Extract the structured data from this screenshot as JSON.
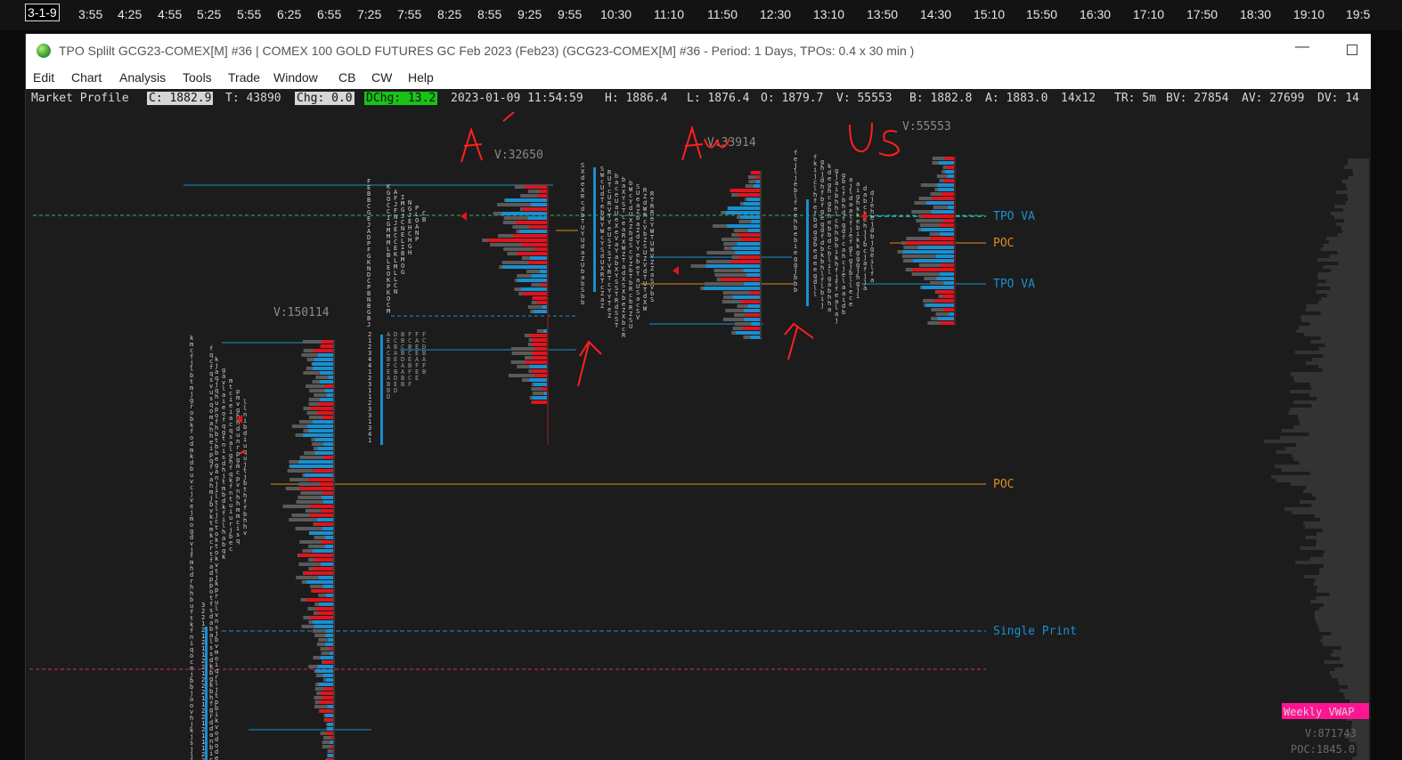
{
  "time_axis": {
    "current": "3-1-9",
    "ticks": [
      "3:55",
      "4:25",
      "4:55",
      "5:25",
      "5:55",
      "6:25",
      "6:55",
      "7:25",
      "7:55",
      "8:25",
      "8:55",
      "9:25",
      "9:55",
      "10:30",
      "11:10",
      "11:50",
      "12:30",
      "13:10",
      "13:50",
      "14:30",
      "15:10",
      "15:50",
      "16:30",
      "17:10",
      "17:50",
      "18:30",
      "19:10",
      "19:5"
    ]
  },
  "window": {
    "title": "TPO Splilt GCG23-COMEX[M]  #36 | COMEX 100 GOLD FUTURES GC Feb 2023 (Feb23) (GCG23-COMEX[M]  #36 - Period: 1 Days, TPOs: 0.4 x 30 min  )",
    "minimize_glyph": "—",
    "menu": [
      "Edit",
      "Chart",
      "Analysis",
      "Tools",
      "Trade",
      "Window",
      "CB",
      "CW",
      "Help"
    ]
  },
  "info": {
    "study": "Market Profile",
    "close": "C: 1882.9",
    "ticks": "T: 43890",
    "chg": "Chg: 0.0",
    "dchg": "DChg: 13.2",
    "datetime": "2023-01-09 11:54:59",
    "high": "H: 1886.4",
    "low": "L: 1876.4",
    "open": "O: 1879.7",
    "volume": "V: 55553",
    "bid": "B: 1882.8",
    "ask": "A: 1883.0",
    "grid": "14x12",
    "tr": "TR: 5m",
    "bv": "BV: 27854",
    "av": "AV: 27699",
    "dv": "DV: 14"
  },
  "profiles": [
    {
      "volume_label": "V:150114"
    },
    {
      "volume_label": "V:32650"
    },
    {
      "volume_label": "V:33914"
    },
    {
      "volume_label": "V:55553"
    }
  ],
  "annotations": {
    "handwritten": [
      "A",
      "Au",
      "Us"
    ]
  },
  "levels": {
    "tpo_va_upper": "TPO VA",
    "poc_current": "POC",
    "tpo_va_lower": "TPO VA",
    "poc_prior": "POC",
    "single_print": "Single Print"
  },
  "right_panel": {
    "weekly_vwap": "Weekly VWAP",
    "volume": "V:871743",
    "poc": "POC:1845.0"
  },
  "colors": {
    "bg": "#1c1c1c",
    "va_green": "#22c15a",
    "poc_orange": "#e08a1e",
    "blue": "#1a8fd0",
    "red": "#e0141e",
    "magenta": "#ff1493",
    "annotation": "#ff2020"
  }
}
